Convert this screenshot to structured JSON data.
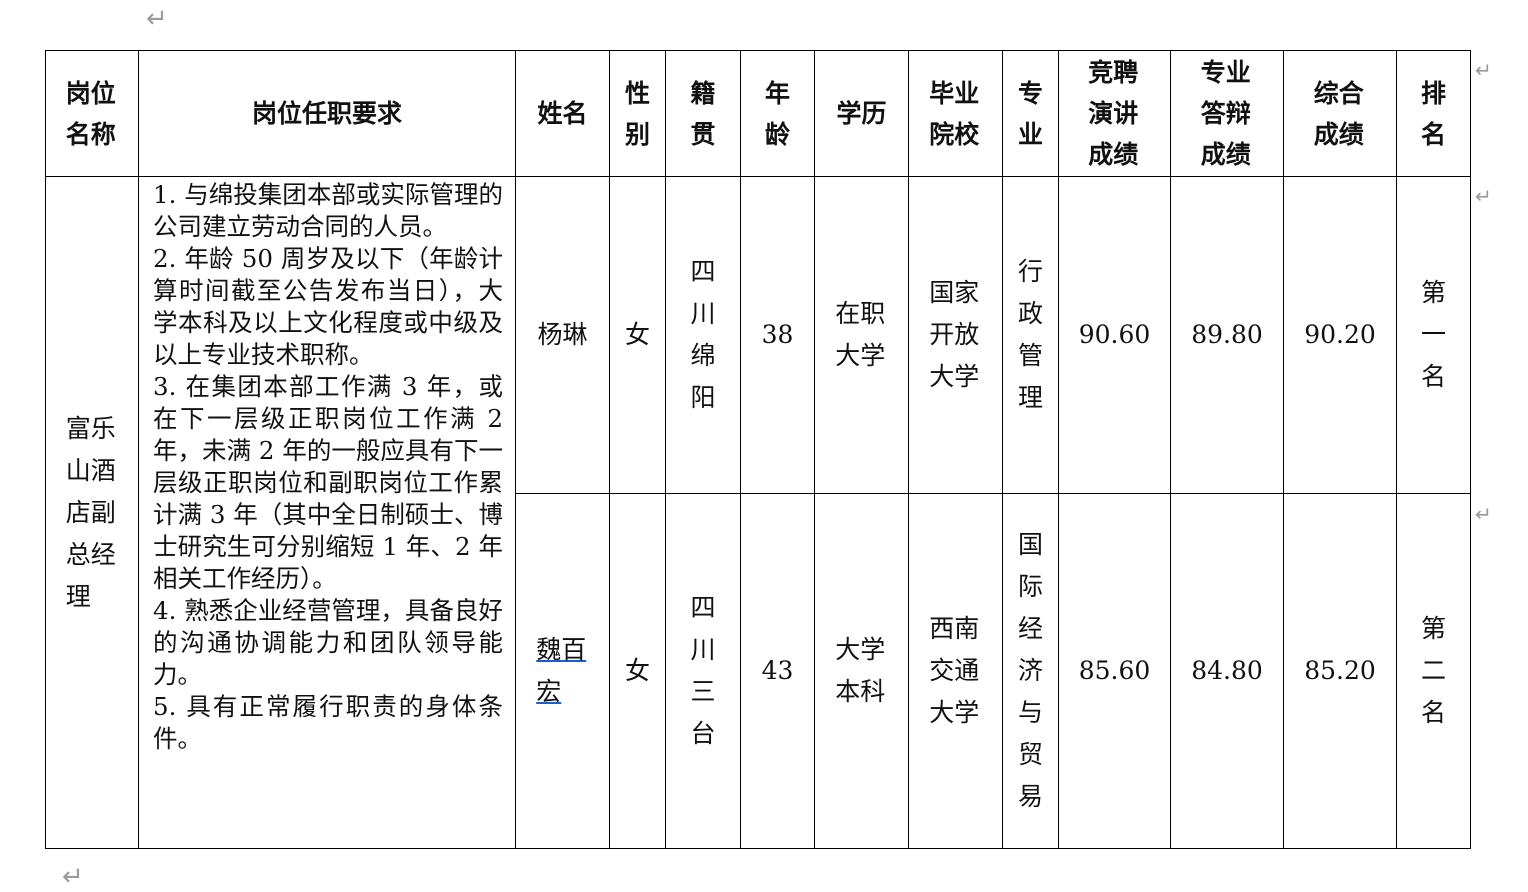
{
  "headers": [
    "岗位名称",
    "岗位任职要求",
    "姓名",
    "性别",
    "籍贯",
    "年龄",
    "学历",
    "毕业院校",
    "专业",
    "竞聘演讲成绩",
    "专业答辩成绩",
    "综合成绩",
    "排名"
  ],
  "position": "富乐山酒店副总经理",
  "requirements": [
    "1. 与绵投集团本部或实际管理的公司建立劳动合同的人员。",
    "2. 年龄 50 周岁及以下（年龄计算时间截至公告发布当日），大学本科及以上文化程度或中级及以上专业技术职称。",
    "3. 在集团本部工作满 3 年，或在下一层级正职岗位工作满 2 年，未满 2 年的一般应具有下一层级正职岗位和副职岗位工作累计满 3 年（其中全日制硕士、博士研究生可分别缩短 1 年、2 年相关工作经历）。",
    "4. 熟悉企业经营管理，具备良好的沟通协调能力和团队领导能力。",
    "5. 具有正常履行职责的身体条件。"
  ],
  "rows": [
    {
      "name": "杨琳",
      "gender": "女",
      "origin": "四川绵阳",
      "age": "38",
      "education": "在职大学",
      "school": "国家开放大学",
      "major": "行政管理",
      "speech": "90.60",
      "defense": "89.80",
      "total": "90.20",
      "rank": "第一名"
    },
    {
      "name": "魏百宏",
      "gender": "女",
      "origin": "四川三台",
      "age": "43",
      "education": "大学本科",
      "school": "西南交通大学",
      "major": "国际经济与贸易",
      "speech": "85.60",
      "defense": "84.80",
      "total": "85.20",
      "rank": "第二名"
    }
  ]
}
